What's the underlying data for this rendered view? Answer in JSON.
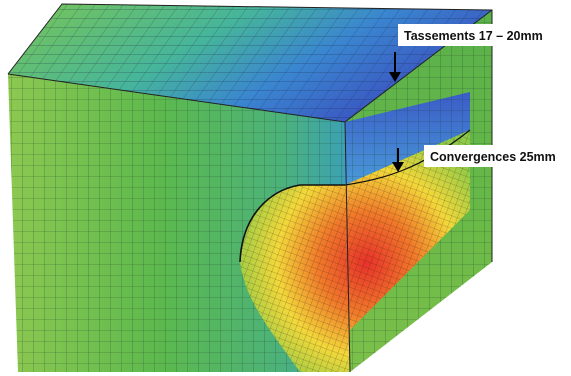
{
  "annotations": {
    "settlement": "Tassements 17 – 20mm",
    "convergence": "Convergences 25mm"
  }
}
